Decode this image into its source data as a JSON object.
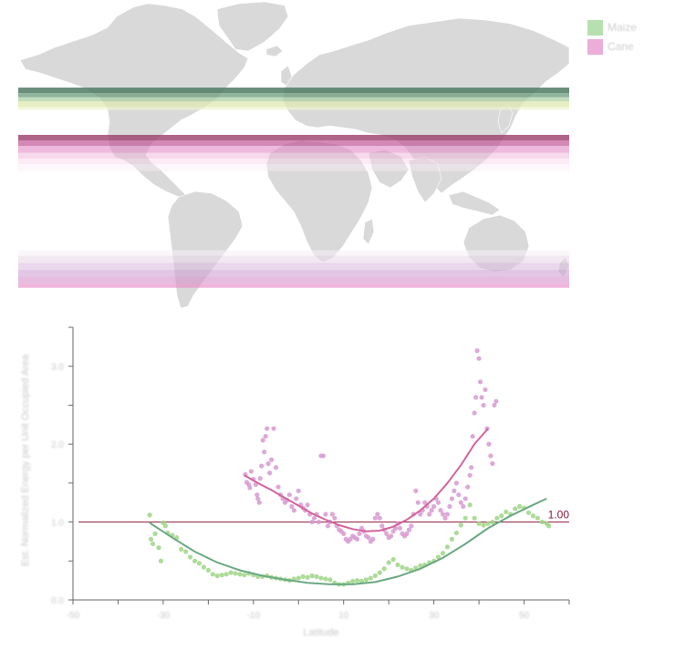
{
  "legend": {
    "items": [
      {
        "label": "Maize",
        "color": "#b7e0b0"
      },
      {
        "label": "Cane",
        "color": "#ecaed8"
      }
    ]
  },
  "map": {
    "bands": [
      {
        "series": "Maize",
        "lat_top": 48.5,
        "lat_bottom": 46.5,
        "color": "#4f7a63",
        "opacity": 0.85
      },
      {
        "series": "Maize",
        "lat_top": 46.5,
        "lat_bottom": 45.0,
        "color": "#6b9b7b",
        "opacity": 0.75
      },
      {
        "series": "Maize",
        "lat_top": 45.0,
        "lat_bottom": 43.5,
        "color": "#a9cfa0",
        "opacity": 0.7
      },
      {
        "series": "Maize",
        "lat_top": 43.5,
        "lat_bottom": 41.5,
        "color": "#dfe8b0",
        "opacity": 0.75
      },
      {
        "series": "Maize",
        "lat_top": 41.5,
        "lat_bottom": 40.5,
        "color": "#f1f3cf",
        "opacity": 0.7
      },
      {
        "series": "Cane",
        "lat_top": 31.5,
        "lat_bottom": 29.5,
        "color": "#9b3e6c",
        "opacity": 0.8
      },
      {
        "series": "Cane",
        "lat_top": 29.5,
        "lat_bottom": 27.5,
        "color": "#c25598",
        "opacity": 0.7
      },
      {
        "series": "Cane",
        "lat_top": 27.5,
        "lat_bottom": 25.0,
        "color": "#e18cc6",
        "opacity": 0.6
      },
      {
        "series": "Cane",
        "lat_top": 25.0,
        "lat_bottom": 23.0,
        "color": "#efb3da",
        "opacity": 0.5
      },
      {
        "series": "Cane",
        "lat_top": 23.0,
        "lat_bottom": 21.0,
        "color": "#f6d2e8",
        "opacity": 0.45
      },
      {
        "series": "Cane",
        "lat_top": 21.0,
        "lat_bottom": 18.5,
        "color": "#faeaf3",
        "opacity": 0.45
      },
      {
        "series": "Cane",
        "lat_top": -10.0,
        "lat_bottom": -12.0,
        "color": "#f6f0f5",
        "opacity": 0.55
      },
      {
        "series": "Cane",
        "lat_top": -12.0,
        "lat_bottom": -14.5,
        "color": "#ead9e9",
        "opacity": 0.6
      },
      {
        "series": "Cane",
        "lat_top": -14.5,
        "lat_bottom": -17.0,
        "color": "#dbbede",
        "opacity": 0.6
      },
      {
        "series": "Cane",
        "lat_top": -17.0,
        "lat_bottom": -19.5,
        "color": "#cda2d3",
        "opacity": 0.6
      },
      {
        "series": "Cane",
        "lat_top": -19.5,
        "lat_bottom": -22.0,
        "color": "#d68fca",
        "opacity": 0.6
      },
      {
        "series": "Cane",
        "lat_top": -22.0,
        "lat_bottom": -23.5,
        "color": "#e88ec7",
        "opacity": 0.65
      }
    ]
  },
  "chart_data": {
    "type": "scatter",
    "title": "",
    "xlabel": "Latitude",
    "ylabel": "Est. Normalized Energy per Unit Occupied Area",
    "xlim": [
      -60,
      50
    ],
    "ylim": [
      0.0,
      3.5
    ],
    "x_ticks": [
      -50,
      -40,
      -30,
      -20,
      -10,
      0,
      10,
      20,
      30,
      40,
      50,
      60
    ],
    "x_tick_labels": [
      "-50",
      "-30",
      "-10",
      "10",
      "30",
      "50"
    ],
    "x_tick_label_values": [
      -50,
      -30,
      -10,
      10,
      30,
      50
    ],
    "y_ticks": [
      0.0,
      0.5,
      1.0,
      1.5,
      2.0,
      2.5,
      3.0,
      3.5
    ],
    "y_tick_labels": [
      "0.0",
      "1.0",
      "2.0",
      "3.0"
    ],
    "y_tick_label_values": [
      0.0,
      1.0,
      2.0,
      3.0
    ],
    "reference_line": {
      "y": 1.0,
      "label": "1.00",
      "color": "#8b1a3a"
    },
    "series": [
      {
        "name": "Maize",
        "color": "#9fd586",
        "line_color": "#6aa982",
        "points": [
          [
            -43,
            1.09
          ],
          [
            -42.7,
            0.78
          ],
          [
            -42.3,
            0.72
          ],
          [
            -41.8,
            0.85
          ],
          [
            -41,
            0.67
          ],
          [
            -40.5,
            0.5
          ],
          [
            -40,
            0.99
          ],
          [
            -39.5,
            0.95
          ],
          [
            -39,
            0.86
          ],
          [
            -38,
            0.83
          ],
          [
            -37,
            0.8
          ],
          [
            -36,
            0.65
          ],
          [
            -35,
            0.62
          ],
          [
            -34,
            0.55
          ],
          [
            -33,
            0.5
          ],
          [
            -32,
            0.47
          ],
          [
            -31,
            0.42
          ],
          [
            -30,
            0.38
          ],
          [
            -29,
            0.33
          ],
          [
            -28,
            0.31
          ],
          [
            -27,
            0.32
          ],
          [
            -26,
            0.33
          ],
          [
            -25,
            0.35
          ],
          [
            -24,
            0.34
          ],
          [
            -23,
            0.33
          ],
          [
            -22,
            0.32
          ],
          [
            -21,
            0.34
          ],
          [
            -20,
            0.32
          ],
          [
            -19,
            0.3
          ],
          [
            -18,
            0.3
          ],
          [
            -17,
            0.31
          ],
          [
            -16,
            0.29
          ],
          [
            -15,
            0.28
          ],
          [
            -14,
            0.27
          ],
          [
            -13,
            0.26
          ],
          [
            -12,
            0.25
          ],
          [
            -11,
            0.27
          ],
          [
            -10,
            0.28
          ],
          [
            -9,
            0.3
          ],
          [
            -8,
            0.29
          ],
          [
            -7,
            0.31
          ],
          [
            -6,
            0.3
          ],
          [
            -5,
            0.28
          ],
          [
            -4,
            0.27
          ],
          [
            -3,
            0.26
          ],
          [
            -2,
            0.22
          ],
          [
            -1,
            0.2
          ],
          [
            0,
            0.2
          ],
          [
            1,
            0.22
          ],
          [
            2,
            0.24
          ],
          [
            3,
            0.25
          ],
          [
            4,
            0.24
          ],
          [
            5,
            0.26
          ],
          [
            6,
            0.28
          ],
          [
            7,
            0.31
          ],
          [
            8,
            0.35
          ],
          [
            9,
            0.4
          ],
          [
            10,
            0.48
          ],
          [
            11,
            0.52
          ],
          [
            12,
            0.45
          ],
          [
            13,
            0.42
          ],
          [
            14,
            0.4
          ],
          [
            15,
            0.38
          ],
          [
            16,
            0.41
          ],
          [
            17,
            0.44
          ],
          [
            18,
            0.45
          ],
          [
            19,
            0.48
          ],
          [
            20,
            0.5
          ],
          [
            21,
            0.55
          ],
          [
            22,
            0.6
          ],
          [
            23,
            0.68
          ],
          [
            24,
            0.78
          ],
          [
            25,
            0.86
          ],
          [
            26,
            0.96
          ],
          [
            27,
            1.05
          ],
          [
            28,
            1.22
          ],
          [
            29,
            1.05
          ],
          [
            30,
            0.98
          ],
          [
            31,
            0.96
          ],
          [
            32,
            0.98
          ],
          [
            33,
            1.0
          ],
          [
            34,
            1.05
          ],
          [
            35,
            1.08
          ],
          [
            36,
            1.13
          ],
          [
            37,
            1.1
          ],
          [
            38,
            1.17
          ],
          [
            39,
            1.2
          ],
          [
            40,
            1.18
          ],
          [
            41,
            1.12
          ],
          [
            42,
            1.08
          ],
          [
            43,
            1.05
          ],
          [
            44,
            1.0
          ],
          [
            45,
            0.98
          ],
          [
            45.5,
            0.95
          ]
        ],
        "fit": [
          [
            -43,
            0.99
          ],
          [
            -38,
            0.8
          ],
          [
            -33,
            0.62
          ],
          [
            -28,
            0.48
          ],
          [
            -23,
            0.38
          ],
          [
            -18,
            0.31
          ],
          [
            -13,
            0.26
          ],
          [
            -8,
            0.22
          ],
          [
            -3,
            0.2
          ],
          [
            2,
            0.2
          ],
          [
            7,
            0.23
          ],
          [
            12,
            0.3
          ],
          [
            17,
            0.4
          ],
          [
            22,
            0.54
          ],
          [
            27,
            0.72
          ],
          [
            32,
            0.92
          ],
          [
            37,
            1.08
          ],
          [
            42,
            1.22
          ],
          [
            45,
            1.3
          ]
        ]
      },
      {
        "name": "Cane",
        "color": "#d79ad0",
        "line_color": "#d4649d",
        "points": [
          [
            -21.8,
            1.61
          ],
          [
            -21.5,
            1.51
          ],
          [
            -21,
            1.48
          ],
          [
            -20.8,
            1.44
          ],
          [
            -20.5,
            1.65
          ],
          [
            -20,
            1.55
          ],
          [
            -19.5,
            1.48
          ],
          [
            -19.2,
            1.35
          ],
          [
            -19,
            1.3
          ],
          [
            -18.7,
            1.25
          ],
          [
            -18.5,
            1.56
          ],
          [
            -18.2,
            1.72
          ],
          [
            -17.9,
            2.05
          ],
          [
            -17.6,
            1.9
          ],
          [
            -17.3,
            2.1
          ],
          [
            -17,
            2.2
          ],
          [
            -16.7,
            1.75
          ],
          [
            -16.4,
            1.63
          ],
          [
            -16,
            1.8
          ],
          [
            -15.5,
            2.2
          ],
          [
            -15,
            1.7
          ],
          [
            -14.5,
            1.45
          ],
          [
            -14,
            1.35
          ],
          [
            -13.5,
            1.3
          ],
          [
            -13,
            1.25
          ],
          [
            -12.5,
            1.28
          ],
          [
            -12,
            1.35
          ],
          [
            -11.5,
            1.2
          ],
          [
            -11,
            1.15
          ],
          [
            -10.5,
            1.3
          ],
          [
            -10,
            1.4
          ],
          [
            -9.5,
            1.22
          ],
          [
            -9,
            1.18
          ],
          [
            -8.5,
            1.15
          ],
          [
            -8,
            1.22
          ],
          [
            -7.5,
            1.1
          ],
          [
            -7,
            1.0
          ],
          [
            -6.5,
            1.05
          ],
          [
            -6,
            1.1
          ],
          [
            -5.5,
            1.0
          ],
          [
            -5,
            1.85
          ],
          [
            -4.5,
            1.85
          ],
          [
            -4,
            1.1
          ],
          [
            -3.5,
            0.95
          ],
          [
            -3,
            1.0
          ],
          [
            -2.5,
            1.1
          ],
          [
            -2,
            1.05
          ],
          [
            -1.5,
            0.95
          ],
          [
            -1,
            0.9
          ],
          [
            -0.5,
            0.88
          ],
          [
            0,
            0.85
          ],
          [
            0.5,
            0.78
          ],
          [
            1,
            0.75
          ],
          [
            1.5,
            0.78
          ],
          [
            2,
            0.82
          ],
          [
            2.5,
            0.8
          ],
          [
            3,
            0.78
          ],
          [
            3.5,
            0.85
          ],
          [
            4,
            0.92
          ],
          [
            4.5,
            0.88
          ],
          [
            5,
            0.82
          ],
          [
            5.5,
            0.8
          ],
          [
            6,
            0.75
          ],
          [
            6.5,
            0.78
          ],
          [
            7,
            1.05
          ],
          [
            7.5,
            1.1
          ],
          [
            8,
            1.05
          ],
          [
            8.5,
            0.95
          ],
          [
            9,
            0.9
          ],
          [
            9.5,
            0.85
          ],
          [
            10,
            0.8
          ],
          [
            10.5,
            0.82
          ],
          [
            11,
            0.88
          ],
          [
            11.5,
            0.92
          ],
          [
            12,
            0.98
          ],
          [
            12.5,
            0.92
          ],
          [
            13,
            0.85
          ],
          [
            13.5,
            0.82
          ],
          [
            14,
            0.85
          ],
          [
            14.5,
            0.9
          ],
          [
            15,
            0.95
          ],
          [
            15.5,
            1.1
          ],
          [
            16,
            1.4
          ],
          [
            16.5,
            1.25
          ],
          [
            17,
            1.1
          ],
          [
            17.5,
            1.15
          ],
          [
            18,
            1.25
          ],
          [
            18.5,
            1.2
          ],
          [
            19,
            1.1
          ],
          [
            19.5,
            1.15
          ],
          [
            20,
            1.2
          ],
          [
            20.5,
            1.3
          ],
          [
            21,
            1.25
          ],
          [
            21.5,
            1.15
          ],
          [
            22,
            1.1
          ],
          [
            22.5,
            1.05
          ],
          [
            23,
            1.1
          ],
          [
            23.5,
            1.2
          ],
          [
            24,
            1.3
          ],
          [
            24.5,
            1.4
          ],
          [
            25,
            1.5
          ],
          [
            25.5,
            1.35
          ],
          [
            26,
            1.25
          ],
          [
            26.5,
            1.2
          ],
          [
            27,
            1.3
          ],
          [
            27.5,
            1.45
          ],
          [
            28,
            1.6
          ],
          [
            28.3,
            1.7
          ],
          [
            28.6,
            2.1
          ],
          [
            29,
            2.4
          ],
          [
            29.3,
            2.6
          ],
          [
            29.6,
            3.2
          ],
          [
            30,
            3.1
          ],
          [
            30.3,
            2.8
          ],
          [
            30.6,
            2.6
          ],
          [
            31,
            2.5
          ],
          [
            31.4,
            2.7
          ],
          [
            31.8,
            2.2
          ],
          [
            32.2,
            2.0
          ],
          [
            32.6,
            1.85
          ],
          [
            33,
            1.75
          ],
          [
            33.4,
            2.5
          ],
          [
            33.8,
            2.55
          ]
        ],
        "fit": [
          [
            -22,
            1.6
          ],
          [
            -19,
            1.5
          ],
          [
            -16,
            1.41
          ],
          [
            -13,
            1.31
          ],
          [
            -10,
            1.21
          ],
          [
            -7,
            1.11
          ],
          [
            -4,
            1.03
          ],
          [
            -1,
            0.96
          ],
          [
            2,
            0.91
          ],
          [
            5,
            0.88
          ],
          [
            8,
            0.89
          ],
          [
            11,
            0.94
          ],
          [
            14,
            1.03
          ],
          [
            17,
            1.15
          ],
          [
            20,
            1.3
          ],
          [
            23,
            1.5
          ],
          [
            26,
            1.73
          ],
          [
            29,
            2.0
          ],
          [
            32,
            2.2
          ]
        ]
      }
    ]
  }
}
